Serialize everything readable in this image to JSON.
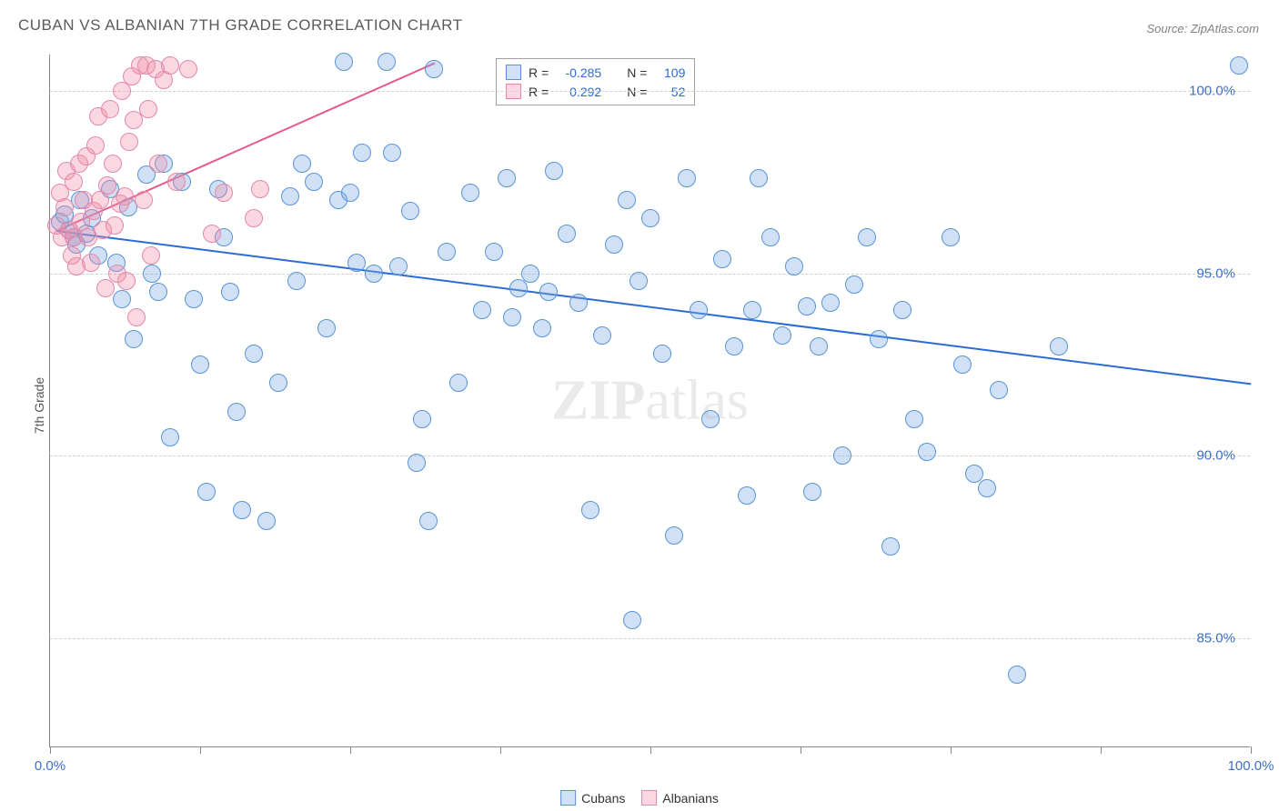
{
  "title": "CUBAN VS ALBANIAN 7TH GRADE CORRELATION CHART",
  "source_label": "Source: ",
  "source_value": "ZipAtlas.com",
  "watermark": {
    "bold": "ZIP",
    "rest": "atlas"
  },
  "ylabel": "7th Grade",
  "chart": {
    "type": "scatter",
    "xlim": [
      0,
      100
    ],
    "ylim": [
      82,
      101
    ],
    "x_min_label": "0.0%",
    "x_max_label": "100.0%",
    "xtick_positions": [
      0,
      12.5,
      25,
      37.5,
      50,
      62.5,
      75,
      87.5,
      100
    ],
    "yticks": [
      85.0,
      90.0,
      95.0,
      100.0
    ],
    "ytick_labels": [
      "85.0%",
      "90.0%",
      "95.0%",
      "100.0%"
    ],
    "grid_color": "#d0d0d0",
    "axis_color": "#888888",
    "background_color": "#ffffff",
    "marker_radius": 10,
    "series": [
      {
        "name": "Cubans",
        "fill": "rgba(120,170,230,0.35)",
        "stroke": "#5a93d6",
        "trend": {
          "x1": 0.5,
          "y1": 96.2,
          "x2": 100,
          "y2": 92.0,
          "color": "#2b6cd4",
          "width": 2.2
        },
        "R": "-0.285",
        "N": "109",
        "points": [
          [
            0.8,
            96.4
          ],
          [
            1.6,
            96.2
          ],
          [
            1.2,
            96.6
          ],
          [
            2.0,
            96.0
          ],
          [
            2.2,
            95.8
          ],
          [
            2.5,
            97.0
          ],
          [
            3.0,
            96.1
          ],
          [
            3.5,
            96.5
          ],
          [
            4.0,
            95.5
          ],
          [
            5.0,
            97.3
          ],
          [
            5.5,
            95.3
          ],
          [
            6.0,
            94.3
          ],
          [
            6.5,
            96.8
          ],
          [
            7.0,
            93.2
          ],
          [
            8.0,
            97.7
          ],
          [
            8.5,
            95.0
          ],
          [
            9.0,
            94.5
          ],
          [
            9.5,
            98.0
          ],
          [
            10.0,
            90.5
          ],
          [
            11.0,
            97.5
          ],
          [
            12.0,
            94.3
          ],
          [
            12.5,
            92.5
          ],
          [
            13.0,
            89.0
          ],
          [
            14.0,
            97.3
          ],
          [
            14.5,
            96.0
          ],
          [
            15.0,
            94.5
          ],
          [
            15.5,
            91.2
          ],
          [
            16.0,
            88.5
          ],
          [
            17.0,
            92.8
          ],
          [
            18.0,
            88.2
          ],
          [
            19.0,
            92.0
          ],
          [
            20.0,
            97.1
          ],
          [
            20.5,
            94.8
          ],
          [
            21.0,
            98.0
          ],
          [
            22.0,
            97.5
          ],
          [
            23.0,
            93.5
          ],
          [
            24.0,
            97.0
          ],
          [
            24.5,
            100.8
          ],
          [
            25.0,
            97.2
          ],
          [
            25.5,
            95.3
          ],
          [
            26.0,
            98.3
          ],
          [
            27.0,
            95.0
          ],
          [
            28.0,
            100.8
          ],
          [
            28.5,
            98.3
          ],
          [
            29.0,
            95.2
          ],
          [
            30.0,
            96.7
          ],
          [
            30.5,
            89.8
          ],
          [
            31.0,
            91.0
          ],
          [
            31.5,
            88.2
          ],
          [
            32.0,
            100.6
          ],
          [
            33.0,
            95.6
          ],
          [
            34.0,
            92.0
          ],
          [
            35.0,
            97.2
          ],
          [
            36.0,
            94.0
          ],
          [
            37.0,
            95.6
          ],
          [
            38.0,
            97.6
          ],
          [
            38.5,
            93.8
          ],
          [
            39.0,
            94.6
          ],
          [
            40.0,
            95.0
          ],
          [
            41.0,
            93.5
          ],
          [
            41.5,
            94.5
          ],
          [
            42.0,
            97.8
          ],
          [
            43.0,
            96.1
          ],
          [
            44.0,
            94.2
          ],
          [
            45.0,
            88.5
          ],
          [
            46.0,
            93.3
          ],
          [
            47.0,
            95.8
          ],
          [
            48.0,
            97.0
          ],
          [
            48.5,
            85.5
          ],
          [
            49.0,
            94.8
          ],
          [
            50.0,
            96.5
          ],
          [
            51.0,
            92.8
          ],
          [
            52.0,
            87.8
          ],
          [
            53.0,
            97.6
          ],
          [
            54.0,
            94.0
          ],
          [
            55.0,
            91.0
          ],
          [
            56.0,
            95.4
          ],
          [
            57.0,
            93.0
          ],
          [
            58.0,
            88.9
          ],
          [
            58.5,
            94.0
          ],
          [
            59.0,
            97.6
          ],
          [
            60.0,
            96.0
          ],
          [
            61.0,
            93.3
          ],
          [
            62.0,
            95.2
          ],
          [
            63.0,
            94.1
          ],
          [
            63.5,
            89.0
          ],
          [
            64.0,
            93.0
          ],
          [
            65.0,
            94.2
          ],
          [
            66.0,
            90.0
          ],
          [
            67.0,
            94.7
          ],
          [
            68.0,
            96.0
          ],
          [
            69.0,
            93.2
          ],
          [
            70.0,
            87.5
          ],
          [
            71.0,
            94.0
          ],
          [
            72.0,
            91.0
          ],
          [
            73.0,
            90.1
          ],
          [
            75.0,
            96.0
          ],
          [
            76.0,
            92.5
          ],
          [
            77.0,
            89.5
          ],
          [
            78.0,
            89.1
          ],
          [
            79.0,
            91.8
          ],
          [
            80.5,
            84.0
          ],
          [
            84.0,
            93.0
          ],
          [
            99.0,
            100.7
          ]
        ]
      },
      {
        "name": "Albanians",
        "fill": "rgba(240,140,170,0.35)",
        "stroke": "#e08aa8",
        "trend": {
          "x1": 0.5,
          "y1": 96.2,
          "x2": 32,
          "y2": 100.8,
          "color": "#e75a8a",
          "width": 2.0
        },
        "R": " 0.292",
        "N": "  52",
        "points": [
          [
            0.5,
            96.3
          ],
          [
            0.8,
            97.2
          ],
          [
            1.0,
            96.0
          ],
          [
            1.2,
            96.8
          ],
          [
            1.4,
            97.8
          ],
          [
            1.6,
            96.2
          ],
          [
            1.8,
            95.5
          ],
          [
            2.0,
            96.0
          ],
          [
            2.0,
            97.5
          ],
          [
            2.2,
            95.2
          ],
          [
            2.4,
            98.0
          ],
          [
            2.6,
            96.4
          ],
          [
            2.8,
            97.0
          ],
          [
            3.0,
            98.2
          ],
          [
            3.2,
            96.0
          ],
          [
            3.4,
            95.3
          ],
          [
            3.6,
            96.7
          ],
          [
            3.8,
            98.5
          ],
          [
            4.0,
            99.3
          ],
          [
            4.2,
            97.0
          ],
          [
            4.4,
            96.2
          ],
          [
            4.6,
            94.6
          ],
          [
            4.8,
            97.4
          ],
          [
            5.0,
            99.5
          ],
          [
            5.2,
            98.0
          ],
          [
            5.4,
            96.3
          ],
          [
            5.6,
            95.0
          ],
          [
            5.8,
            96.9
          ],
          [
            6.0,
            100.0
          ],
          [
            6.2,
            97.1
          ],
          [
            6.4,
            94.8
          ],
          [
            6.6,
            98.6
          ],
          [
            6.8,
            100.4
          ],
          [
            7.0,
            99.2
          ],
          [
            7.2,
            93.8
          ],
          [
            7.5,
            100.7
          ],
          [
            7.8,
            97.0
          ],
          [
            8.0,
            100.7
          ],
          [
            8.2,
            99.5
          ],
          [
            8.4,
            95.5
          ],
          [
            8.8,
            100.6
          ],
          [
            9.0,
            98.0
          ],
          [
            9.5,
            100.3
          ],
          [
            10.0,
            100.7
          ],
          [
            10.5,
            97.5
          ],
          [
            11.5,
            100.6
          ],
          [
            13.5,
            96.1
          ],
          [
            14.5,
            97.2
          ],
          [
            17.0,
            96.5
          ],
          [
            17.5,
            97.3
          ]
        ]
      }
    ]
  },
  "stat_box": {
    "rows": [
      {
        "swatch_fill": "rgba(120,170,230,0.35)",
        "swatch_stroke": "#5a93d6",
        "r_label": "R =",
        "r_val": "-0.285",
        "n_label": "N =",
        "n_val": "109"
      },
      {
        "swatch_fill": "rgba(240,140,170,0.35)",
        "swatch_stroke": "#e08aa8",
        "r_label": "R =",
        "r_val": " 0.292",
        "n_label": "N =",
        "n_val": "  52"
      }
    ]
  },
  "bottom_legend": [
    {
      "fill": "rgba(120,170,230,0.35)",
      "stroke": "#5a93d6",
      "label": "Cubans"
    },
    {
      "fill": "rgba(240,140,170,0.35)",
      "stroke": "#e08aa8",
      "label": "Albanians"
    }
  ]
}
